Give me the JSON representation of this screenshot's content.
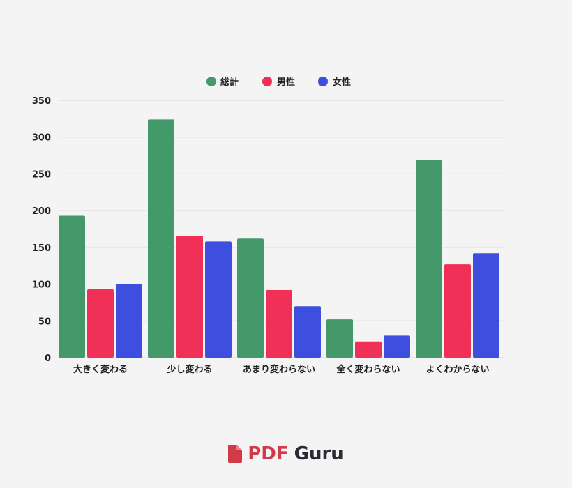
{
  "chart_data": {
    "type": "bar",
    "categories": [
      "大きく変わる",
      "少し変わる",
      "あまり変わらない",
      "全く変わらない",
      "よくわからない"
    ],
    "series": [
      {
        "name": "総計",
        "color": "#43996a",
        "values": [
          193,
          324,
          162,
          52,
          269
        ]
      },
      {
        "name": "男性",
        "color": "#f03057",
        "values": [
          93,
          166,
          92,
          22,
          127
        ]
      },
      {
        "name": "女性",
        "color": "#3e4fe0",
        "values": [
          100,
          158,
          70,
          30,
          142
        ]
      }
    ],
    "ylim": [
      0,
      350
    ],
    "yticks": [
      0,
      50,
      100,
      150,
      200,
      250,
      300,
      350
    ],
    "grid": true,
    "legend": "top-center"
  },
  "brand": {
    "part1": "PDF",
    "part2": "Guru",
    "icon": "pdf-file-icon"
  }
}
